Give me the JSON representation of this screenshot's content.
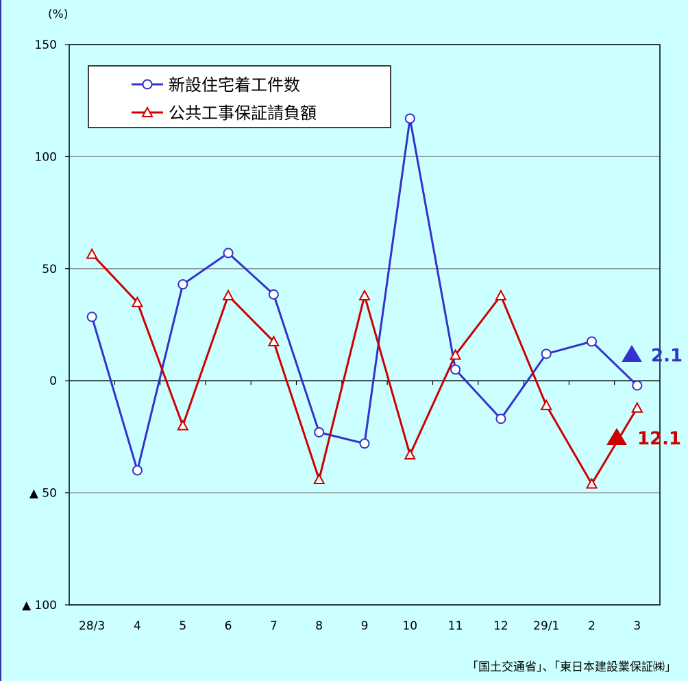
{
  "chart_data": {
    "type": "line",
    "unit_label": "(%)",
    "categories": [
      "28/3",
      "4",
      "5",
      "6",
      "7",
      "8",
      "9",
      "10",
      "11",
      "12",
      "29/1",
      "2",
      "3"
    ],
    "ylim": [
      -100,
      150
    ],
    "yticks": [
      {
        "value": 150,
        "label": "150"
      },
      {
        "value": 100,
        "label": "100"
      },
      {
        "value": 50,
        "label": "50"
      },
      {
        "value": 0,
        "label": "0"
      },
      {
        "value": -50,
        "label": "▲ 50"
      },
      {
        "value": -100,
        "label": "▲ 100"
      }
    ],
    "grid": true,
    "legend_position": "top-left",
    "series": [
      {
        "name": "新設住宅着工件数",
        "color": "#3333cc",
        "marker": "circle",
        "values": [
          28.5,
          -40,
          43,
          57,
          38.5,
          -23,
          -28,
          117,
          5,
          -17,
          12,
          17.5,
          -2.1
        ]
      },
      {
        "name": "公共工事保証請負額",
        "color": "#cc0000",
        "marker": "triangle",
        "values": [
          56.5,
          35,
          -20,
          38,
          17.5,
          -44,
          38,
          -33,
          11.5,
          38,
          -11,
          -46,
          -12.1
        ]
      }
    ],
    "annotations": [
      {
        "series": 0,
        "text": "2.1",
        "color": "#3333cc"
      },
      {
        "series": 1,
        "text": "12.1",
        "color": "#cc0000"
      }
    ],
    "source": "「国土交通省」、「東日本建設業保証㈱」"
  }
}
